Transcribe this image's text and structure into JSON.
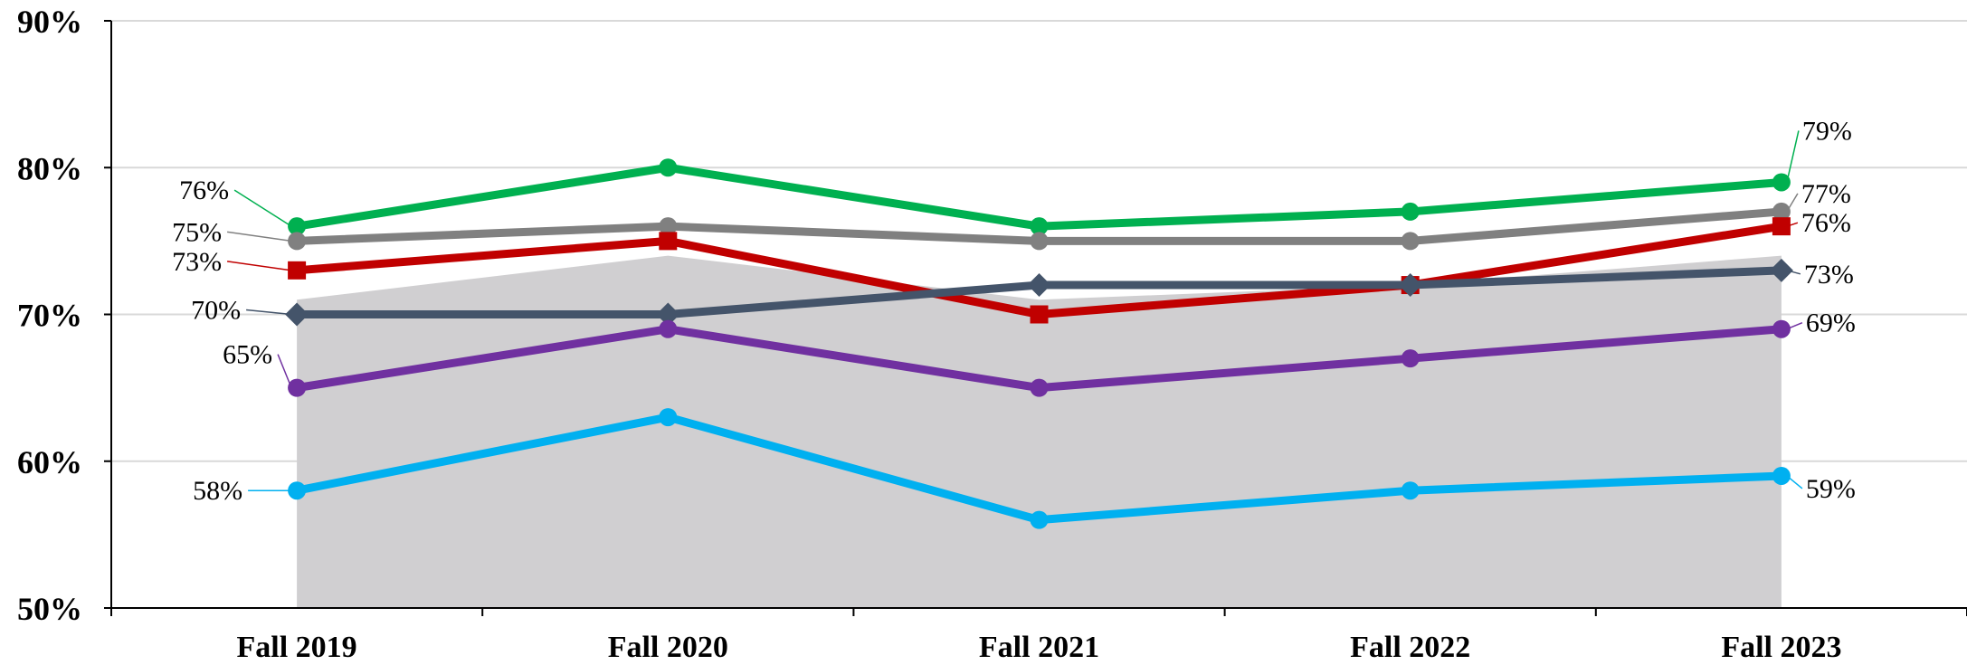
{
  "chart_data": {
    "type": "line",
    "title": "",
    "xlabel": "",
    "ylabel": "",
    "categories": [
      "Fall 2019",
      "Fall 2020",
      "Fall 2021",
      "Fall 2022",
      "Fall 2023"
    ],
    "ylim": [
      50,
      90
    ],
    "yticks": [
      50,
      60,
      70,
      80,
      90
    ],
    "ytick_labels": [
      "50%",
      "60%",
      "70%",
      "80%",
      "90%"
    ],
    "grid": true,
    "legend": "none",
    "area": {
      "values": [
        71,
        74,
        71,
        72,
        74
      ],
      "color": "#d0cfd1"
    },
    "series": [
      {
        "values": [
          76,
          80,
          76,
          77,
          79
        ],
        "color": "#00b050",
        "marker": "circle",
        "labels": [
          "76%",
          "",
          "",
          "",
          "79%"
        ]
      },
      {
        "values": [
          75,
          76,
          75,
          75,
          77
        ],
        "color": "#808080",
        "marker": "circle",
        "labels": [
          "75%",
          "",
          "",
          "",
          "77%"
        ]
      },
      {
        "values": [
          73,
          75,
          70,
          72,
          76
        ],
        "color": "#c00000",
        "marker": "square",
        "labels": [
          "73%",
          "",
          "",
          "",
          "76%"
        ]
      },
      {
        "values": [
          70,
          70,
          72,
          72,
          73
        ],
        "color": "#44546a",
        "marker": "diamond",
        "labels": [
          "70%",
          "",
          "",
          "",
          "73%"
        ]
      },
      {
        "values": [
          65,
          69,
          65,
          67,
          69
        ],
        "color": "#7030a0",
        "marker": "circle",
        "labels": [
          "65%",
          "",
          "",
          "",
          "69%"
        ]
      },
      {
        "values": [
          58,
          63,
          56,
          58,
          59
        ],
        "color": "#00b0f0",
        "marker": "circle",
        "labels": [
          "58%",
          "",
          "",
          "",
          "59%"
        ]
      }
    ]
  }
}
